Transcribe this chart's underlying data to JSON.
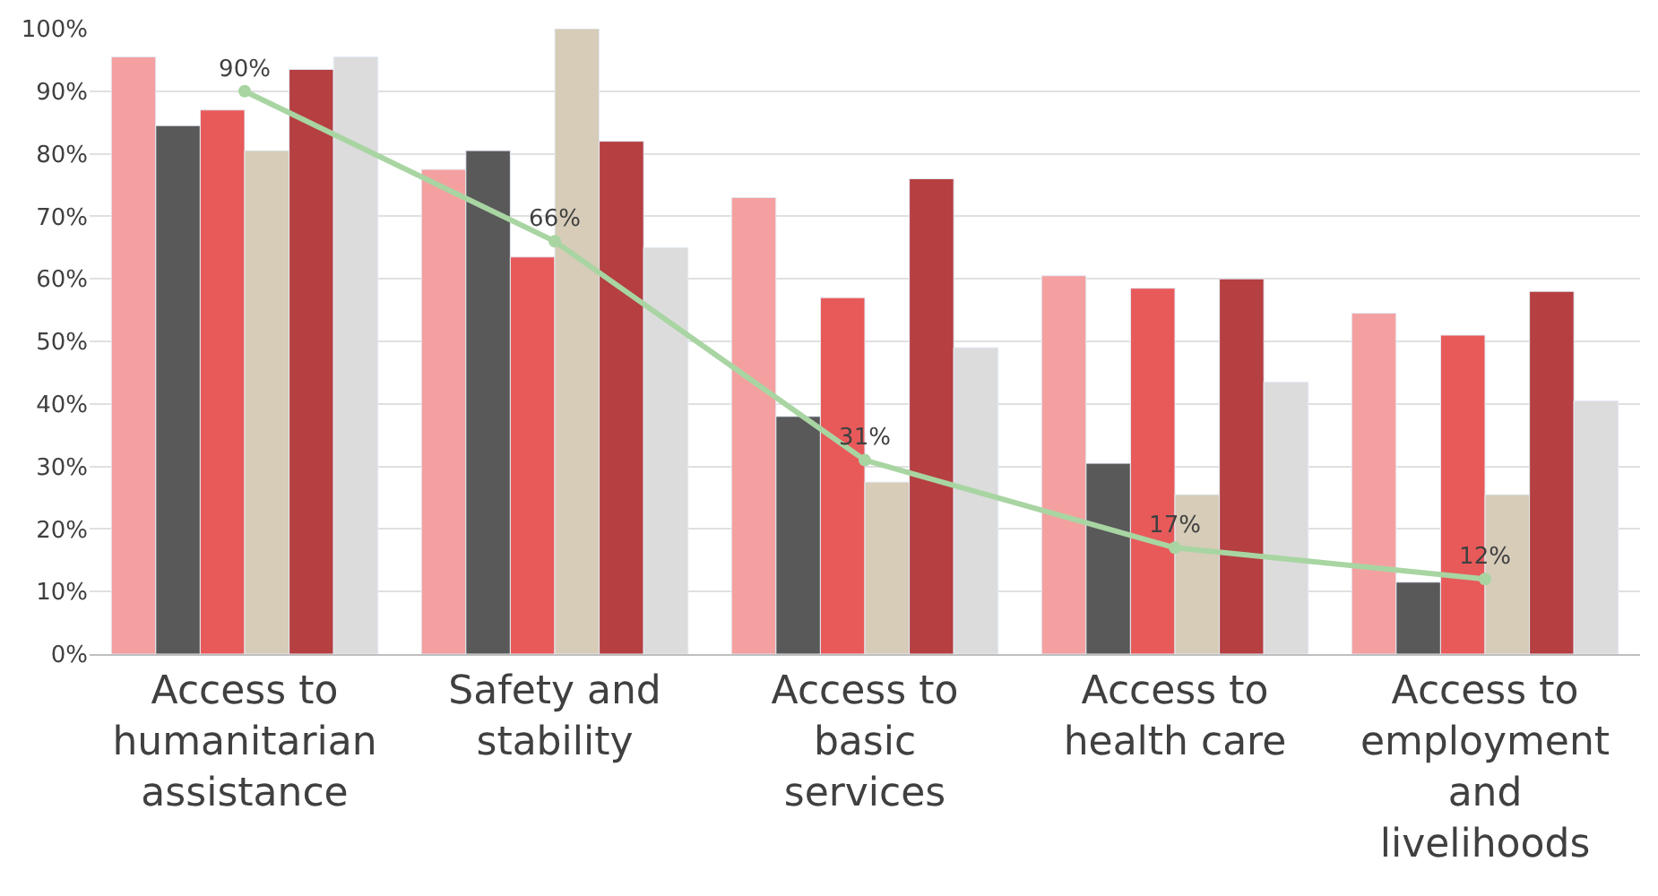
{
  "chart_data": {
    "type": "bar",
    "categories": [
      "Access to humanitarian assistance",
      "Safety and stability",
      "Access to basic services",
      "Access to health care",
      "Access to employment and livelihoods"
    ],
    "series": [
      {
        "color": "#f4a0a0",
        "values": [
          95.5,
          77.5,
          73,
          60.5,
          54.5
        ]
      },
      {
        "color": "#595959",
        "values": [
          84.5,
          80.5,
          38,
          30.5,
          11.5
        ]
      },
      {
        "color": "#e85a5a",
        "values": [
          87,
          63.5,
          57,
          58.5,
          51
        ]
      },
      {
        "color": "#d6ccb8",
        "values": [
          80.5,
          100,
          27.5,
          25.5,
          25.5
        ]
      },
      {
        "color": "#b53f41",
        "values": [
          93.5,
          82,
          76,
          60,
          58
        ]
      },
      {
        "color": "#dcdcdc",
        "values": [
          95.5,
          65,
          49,
          43.5,
          40.5
        ]
      },
      {
        "type": "line",
        "color": "#a8d5a2",
        "marker": "circle",
        "values": [
          90,
          66,
          31,
          17,
          12
        ],
        "value_labels": [
          "90%",
          "66%",
          "31%",
          "17%",
          "12%"
        ]
      }
    ],
    "ylim": [
      0,
      100
    ],
    "yticks": [
      {
        "value": 0,
        "label": "0%"
      },
      {
        "value": 10,
        "label": "10%"
      },
      {
        "value": 20,
        "label": "20%"
      },
      {
        "value": 30,
        "label": "30%"
      },
      {
        "value": 40,
        "label": "40%"
      },
      {
        "value": 50,
        "label": "50%"
      },
      {
        "value": 60,
        "label": "60%"
      },
      {
        "value": 70,
        "label": "70%"
      },
      {
        "value": 80,
        "label": "80%"
      },
      {
        "value": 90,
        "label": "90%"
      },
      {
        "value": 100,
        "label": "100%"
      }
    ],
    "grid": "y"
  }
}
